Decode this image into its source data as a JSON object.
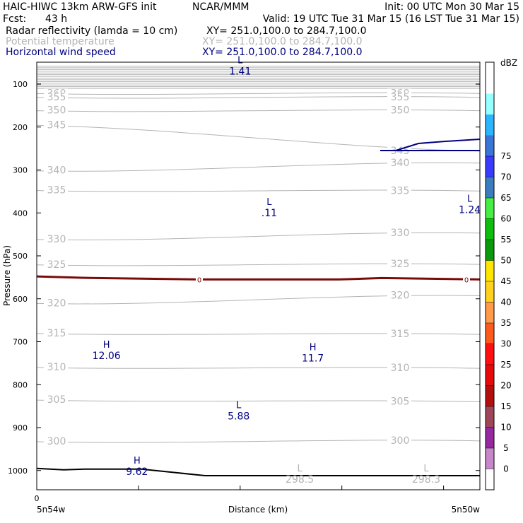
{
  "header": {
    "model": "HAIC-HIWC 13km ARW-GFS init",
    "org": "NCAR/MMM",
    "init": "Init: 00 UTC Mon 30 Mar 15",
    "fcst_label": "Fcst:",
    "fcst_value": "43 h",
    "valid": "Valid: 19 UTC Tue 31 Mar 15 (16 LST Tue 31 Mar 15)",
    "fields": [
      {
        "name": "Radar reflectivity (lamda = 10 cm)",
        "xy": "XY= 251.0,100.0 to 284.7,100.0",
        "color": "#000000"
      },
      {
        "name": "Potential temperature",
        "xy": "XY= 251.0,100.0 to 284.7,100.0",
        "color": "#b4b4b4"
      },
      {
        "name": "Horizontal wind speed",
        "xy": "XY= 251.0,100.0 to 284.7,100.0",
        "color": "#000080"
      }
    ]
  },
  "chart_data": {
    "type": "cross-section",
    "ylabel": "Pressure (hPa)",
    "xlabel": "Distance (km)",
    "x_range": [
      0,
      30.5
    ],
    "y_range": [
      1050,
      55
    ],
    "y_scale": "linear-inverted",
    "y_ticks": [
      100,
      200,
      300,
      400,
      500,
      600,
      700,
      800,
      900,
      1000
    ],
    "x_ticks": [
      0,
      7,
      14,
      21,
      28
    ],
    "x_tick_labels": [
      {
        "x": 0,
        "label": "0"
      }
    ],
    "x_end_labels": {
      "left": "5n54w",
      "right": "5n50w"
    },
    "theta_labels": [
      {
        "value": "360",
        "left_p": 122,
        "right_p": 122
      },
      {
        "value": "355",
        "left_p": 131,
        "right_p": 131
      },
      {
        "value": "350",
        "left_p": 162,
        "right_p": 162
      },
      {
        "value": "345",
        "left_p": 196,
        "right_p": 256
      },
      {
        "value": "340",
        "left_p": 302,
        "right_p": 284
      },
      {
        "value": "335",
        "left_p": 348,
        "right_p": 349
      },
      {
        "value": "330",
        "left_p": 462,
        "right_p": 447
      },
      {
        "value": "325",
        "left_p": 521,
        "right_p": 520
      },
      {
        "value": "320",
        "left_p": 611,
        "right_p": 593
      },
      {
        "value": "315",
        "left_p": 681,
        "right_p": 683
      },
      {
        "value": "310",
        "left_p": 760,
        "right_p": 762
      },
      {
        "value": "305",
        "left_p": 836,
        "right_p": 840
      },
      {
        "value": "300",
        "left_p": 933,
        "right_p": 931
      }
    ],
    "extrema": [
      {
        "type": "L",
        "value": "1.41",
        "x": 14,
        "p": 55,
        "field": "wind"
      },
      {
        "type": "L",
        "value": ".11",
        "x": 16,
        "p": 385,
        "field": "wind"
      },
      {
        "type": "L",
        "value": "1.24",
        "x": 29.8,
        "p": 377,
        "field": "wind"
      },
      {
        "type": "H",
        "value": "12.06",
        "x": 4.8,
        "p": 717,
        "field": "wind"
      },
      {
        "type": "H",
        "value": "11.7",
        "x": 19,
        "p": 723,
        "field": "wind"
      },
      {
        "type": "L",
        "value": "5.88",
        "x": 13.9,
        "p": 858,
        "field": "wind"
      },
      {
        "type": "H",
        "value": "9.62",
        "x": 6.9,
        "p": 987,
        "field": "wind"
      },
      {
        "type": "L",
        "value": "298.5",
        "x": 18.1,
        "p": 1005,
        "field": "theta"
      },
      {
        "type": "L",
        "value": "298.3",
        "x": 26.8,
        "p": 1005,
        "field": "theta"
      }
    ],
    "zero_line": {
      "label": "0",
      "p_left": 548,
      "p_right": 555
    },
    "terrain": {
      "p_left": 995,
      "p_right": 1012
    },
    "colorbar": {
      "unit": "dBZ",
      "ticks": [
        0,
        5,
        10,
        15,
        20,
        25,
        30,
        35,
        40,
        45,
        50,
        55,
        60,
        65,
        70,
        75
      ],
      "colors": [
        "#ffffff",
        "#96ffff",
        "#2bb5ff",
        "#3a75d8",
        "#3b3bff",
        "#3b7dbe",
        "#44ee44",
        "#0ebe0e",
        "#0b9a0b",
        "#ffe600",
        "#ffd21e",
        "#ff9b4b",
        "#ff5a1e",
        "#ff0f0f",
        "#e60a0a",
        "#b40f0f",
        "#a0465a",
        "#9628a0",
        "#c887c8",
        "#ffffff"
      ]
    }
  }
}
